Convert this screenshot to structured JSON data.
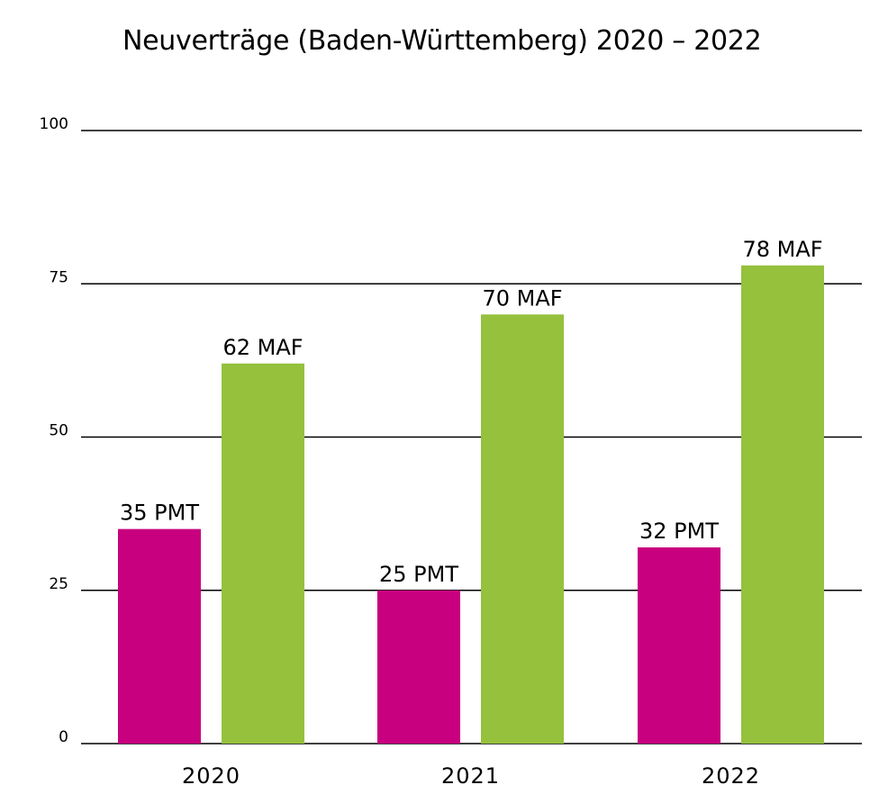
{
  "chart_data": {
    "type": "bar",
    "title": "Neuverträge (Baden-Württemberg) 2020 – 2022",
    "xlabel": "",
    "ylabel": "",
    "categories": [
      "2020",
      "2021",
      "2022"
    ],
    "ylim": [
      0,
      100
    ],
    "yticks": [
      0,
      25,
      50,
      75,
      100
    ],
    "grid": true,
    "series": [
      {
        "values": [
          35,
          25,
          32
        ],
        "labels": [
          "35 PMT",
          "25 PMT",
          "32 PMT"
        ],
        "color": "#c8007f"
      },
      {
        "values": [
          62,
          70,
          78
        ],
        "labels": [
          "62 MAF",
          "70 MAF",
          "78 MAF"
        ],
        "color": "#95c13d"
      }
    ]
  }
}
